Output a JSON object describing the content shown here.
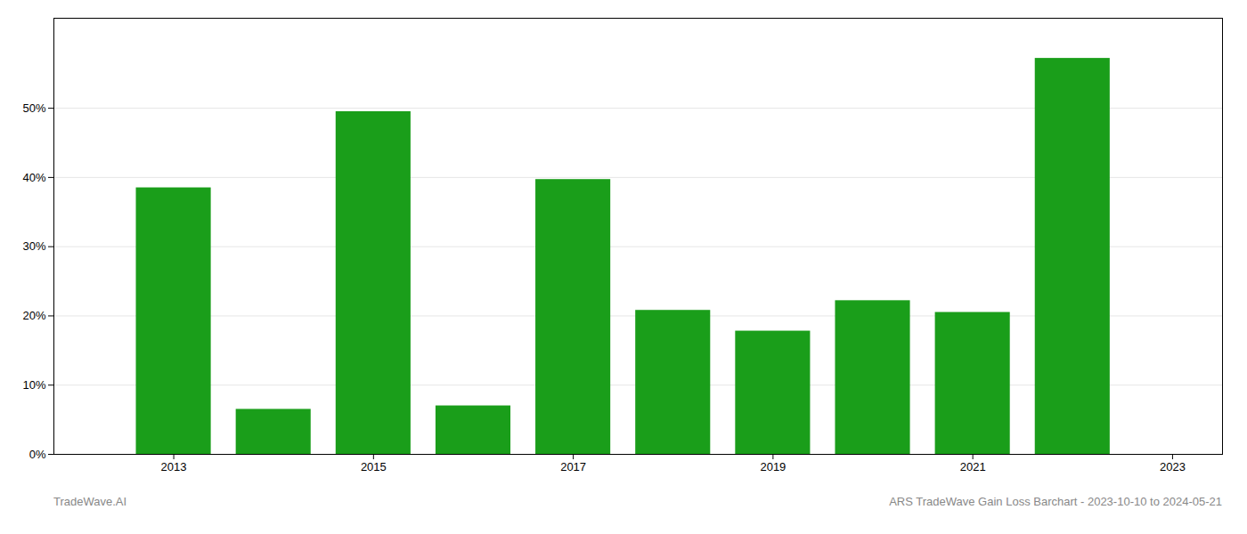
{
  "chart_data": {
    "type": "bar",
    "x": [
      2013,
      2014,
      2015,
      2016,
      2017,
      2018,
      2019,
      2020,
      2021,
      2022
    ],
    "values": [
      0.385,
      0.065,
      0.495,
      0.07,
      0.397,
      0.208,
      0.178,
      0.222,
      0.205,
      0.572
    ],
    "color": "#1a9e1a",
    "xlim": [
      2011.8,
      2023.5
    ],
    "xticks": [
      2013,
      2015,
      2017,
      2019,
      2021,
      2023
    ],
    "ylim": [
      0,
      0.63
    ],
    "yticks": [
      {
        "value": 0.0,
        "label": "0%"
      },
      {
        "value": 0.1,
        "label": "10%"
      },
      {
        "value": 0.2,
        "label": "20%"
      },
      {
        "value": 0.3,
        "label": "30%"
      },
      {
        "value": 0.4,
        "label": "40%"
      },
      {
        "value": 0.5,
        "label": "50%"
      }
    ],
    "grid": true,
    "annotations": [
      "TradeWave.AI",
      "ARS TradeWave Gain Loss Barchart - 2023-10-10 to 2024-05-21"
    ]
  }
}
